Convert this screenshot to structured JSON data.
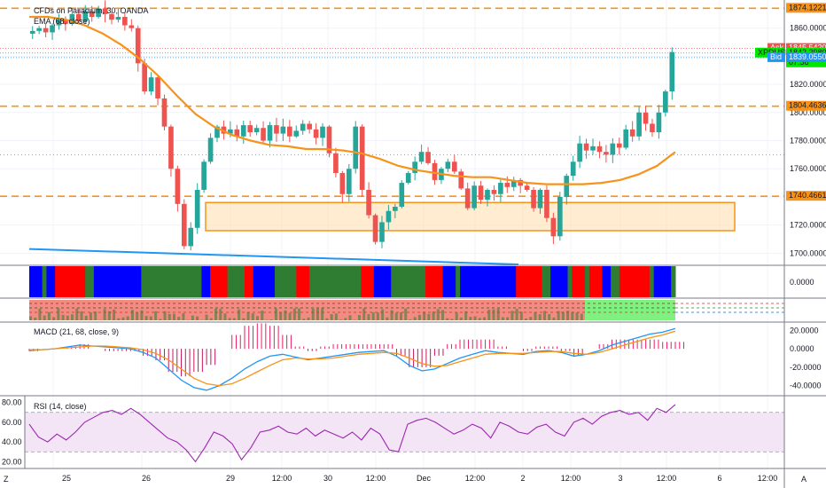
{
  "header": {
    "symbol_title": "CFDs on Palladium, 30, OANDA",
    "ma_label": "EMA (68, close)",
    "currency": "USD"
  },
  "price_axis": {
    "ticks": [
      "1860.0000",
      "1840.0000",
      "1820.0000",
      "1800.0000",
      "1780.0000",
      "1760.0000",
      "1740.0000",
      "1720.0000",
      "1700.0000"
    ],
    "tick_values": [
      1860,
      1840,
      1820,
      1800,
      1780,
      1760,
      1740,
      1720,
      1700
    ],
    "range": [
      1692,
      1880
    ]
  },
  "labels": {
    "top_level": "1874.1221",
    "ask_tag": "Ask",
    "ask_value": "1845.5420",
    "symbol_tag": "XPDUSD",
    "last_value": "1842.2980",
    "countdown": "07:56",
    "bid_tag": "Bid",
    "bid_value": "1839.0550",
    "level_mid": "1804.4636",
    "level_low": "1740.4661"
  },
  "levels": [
    1874.1221,
    1804.4636,
    1740.4661
  ],
  "zone": {
    "low": 1716,
    "high": 1736
  },
  "trendline": {
    "from": 1703,
    "to": 1692
  },
  "pane_faint": {
    "zero": "0.0000"
  },
  "macd": {
    "label": "MACD (21, 68, close, 9)",
    "ticks": [
      "20.0000",
      "0.0000",
      "-20.0000",
      "-40.0000"
    ],
    "tick_values": [
      20,
      0,
      -20,
      -40
    ],
    "range": [
      -50,
      28
    ]
  },
  "rsi": {
    "label": "RSI (14, close)",
    "ticks": [
      "80.00",
      "60.00",
      "40.00",
      "20.00"
    ],
    "tick_values": [
      80,
      60,
      40,
      20
    ],
    "range": [
      14,
      86
    ],
    "band": [
      30,
      70
    ]
  },
  "time_axis": {
    "labels": [
      "25",
      "26",
      "29",
      "12:00",
      "30",
      "12:00",
      "Dec",
      "12:00",
      "2",
      "12:00",
      "3",
      "12:00",
      "6",
      "12:00"
    ],
    "corner_left": "Z",
    "corner_right": "A"
  },
  "colors": {
    "candle_up": "#26a69a",
    "candle_down": "#ef5350",
    "ema": "#f7931a",
    "level": "#f7931a",
    "trendline": "#2196f3",
    "ask": "#ef5350",
    "last": "#00e600",
    "bid": "#2196f3",
    "macd_line": "#2196f3",
    "signal_line": "#f7931a",
    "rsi_line": "#9c27b0",
    "rsi_band": "#f3e5f5"
  },
  "chart_data": {
    "type": "candlestick",
    "title": "CFDs on Palladium, 30, OANDA",
    "ylim": [
      1692,
      1880
    ],
    "y_ticks": [
      1700,
      1720,
      1740,
      1760,
      1780,
      1800,
      1820,
      1840,
      1860
    ],
    "x_tick_labels": [
      "25",
      "26",
      "29",
      "12:00",
      "30",
      "12:00",
      "Dec",
      "12:00",
      "2",
      "12:00",
      "3",
      "12:00",
      "6",
      "12:00"
    ],
    "price_series": [
      1858,
      1860,
      1857,
      1862,
      1866,
      1863,
      1870,
      1865,
      1872,
      1868,
      1874,
      1870,
      1866,
      1868,
      1862,
      1860,
      1835,
      1815,
      1825,
      1810,
      1790,
      1760,
      1735,
      1705,
      1718,
      1745,
      1765,
      1782,
      1790,
      1785,
      1788,
      1783,
      1791,
      1786,
      1789,
      1780,
      1791,
      1785,
      1790,
      1783,
      1787,
      1792,
      1788,
      1782,
      1790,
      1771,
      1757,
      1742,
      1760,
      1790,
      1745,
      1727,
      1708,
      1722,
      1730,
      1733,
      1750,
      1757,
      1765,
      1772,
      1764,
      1752,
      1760,
      1765,
      1758,
      1746,
      1732,
      1748,
      1738,
      1745,
      1742,
      1750,
      1747,
      1752,
      1748,
      1745,
      1732,
      1745,
      1725,
      1712,
      1740,
      1755,
      1765,
      1778,
      1773,
      1776,
      1772,
      1770,
      1778,
      1775,
      1788,
      1783,
      1800,
      1792,
      1786,
      1800,
      1815,
      1843
    ],
    "ema_series": [
      1868,
      1868,
      1866,
      1862,
      1856,
      1848,
      1838,
      1826,
      1812,
      1799,
      1790,
      1784,
      1780,
      1777,
      1776,
      1774,
      1774,
      1773,
      1771,
      1767,
      1762,
      1759,
      1757,
      1755,
      1754,
      1754,
      1752,
      1750,
      1749,
      1749,
      1749,
      1750,
      1752,
      1756,
      1762,
      1772
    ],
    "levels": [
      1874.1221,
      1804.4636,
      1740.4661
    ],
    "last_price": 1842.298,
    "ask": 1845.542,
    "bid": 1839.055,
    "macd": {
      "name": "MACD (21, 68, close, 9)",
      "ylim": [
        -50,
        28
      ],
      "macd_series": [
        -2,
        -1,
        0,
        2,
        4,
        3,
        2,
        1,
        0,
        -4,
        -10,
        -22,
        -34,
        -42,
        -45,
        -40,
        -32,
        -22,
        -14,
        -8,
        -6,
        -9,
        -12,
        -10,
        -8,
        -6,
        -4,
        -3,
        -2,
        -8,
        -18,
        -24,
        -22,
        -16,
        -10,
        -6,
        -2,
        -4,
        -5,
        -6,
        -3,
        -2,
        -4,
        -8,
        -6,
        -2,
        4,
        8,
        12,
        16,
        18,
        22
      ],
      "signal_series": [
        -1,
        -1,
        0,
        1,
        2,
        3,
        3,
        2,
        1,
        -1,
        -5,
        -12,
        -22,
        -32,
        -38,
        -40,
        -38,
        -32,
        -25,
        -18,
        -12,
        -10,
        -11,
        -11,
        -10,
        -8,
        -6,
        -5,
        -4,
        -5,
        -10,
        -16,
        -19,
        -18,
        -14,
        -10,
        -6,
        -5,
        -5,
        -5,
        -4,
        -3,
        -3,
        -5,
        -6,
        -4,
        0,
        4,
        8,
        12,
        15,
        19
      ]
    },
    "rsi": {
      "name": "RSI (14, close)",
      "ylim": [
        14,
        86
      ],
      "band": [
        30,
        70
      ],
      "series": [
        58,
        45,
        40,
        48,
        42,
        50,
        60,
        65,
        70,
        72,
        68,
        74,
        68,
        60,
        52,
        44,
        40,
        32,
        20,
        34,
        50,
        46,
        38,
        22,
        34,
        50,
        52,
        56,
        50,
        48,
        54,
        46,
        52,
        48,
        44,
        50,
        42,
        54,
        48,
        32,
        30,
        58,
        62,
        64,
        60,
        54,
        48,
        52,
        58,
        54,
        44,
        60,
        56,
        50,
        48,
        55,
        58,
        50,
        46,
        60,
        64,
        58,
        66,
        70,
        72,
        68,
        70,
        62,
        74,
        70,
        78
      ]
    }
  }
}
